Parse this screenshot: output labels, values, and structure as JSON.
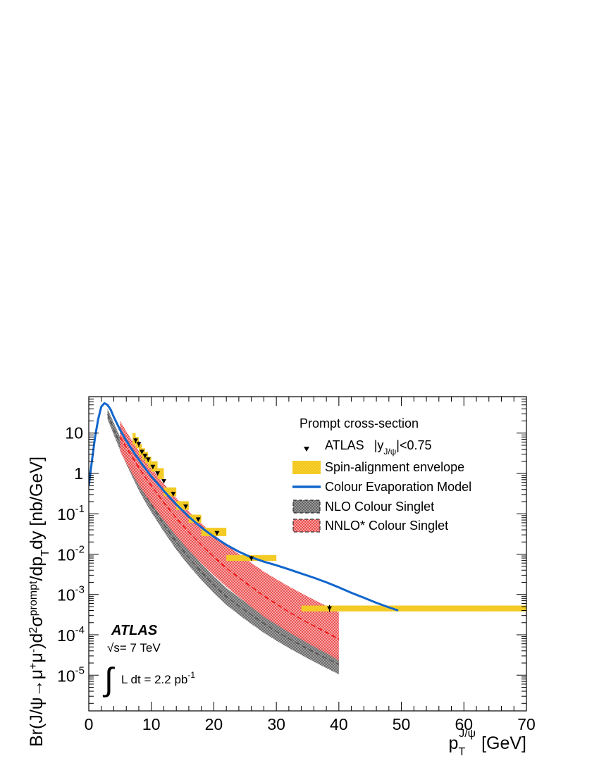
{
  "chart_data": {
    "type": "line",
    "ylabel": {
      "pre": "Br(J/ψ→μ",
      "plus": "+",
      "mid": "μ",
      "minus": "-",
      "post1": ")d",
      "two": "2",
      "sigma": "σ",
      "prompt": "prompt",
      "slash": "/dp",
      "T": "T",
      "post2": "dy [nb/GeV]"
    },
    "xlabel": {
      "p": "p",
      "sub": "T",
      "sup": "J/ψ",
      "unit": "[GeV]"
    },
    "x_range": [
      0,
      70
    ],
    "y_range": [
      1.3e-06,
      80
    ],
    "y_scale": "log",
    "x_ticks": [
      "0",
      "10",
      "20",
      "30",
      "40",
      "50",
      "60",
      "70"
    ],
    "y_ticks": [
      {
        "value": 10,
        "label": "10"
      },
      {
        "value": 1,
        "label": "1"
      },
      {
        "value": 0.1,
        "mant": "10",
        "exp": "-1"
      },
      {
        "value": 0.01,
        "mant": "10",
        "exp": "-2"
      },
      {
        "value": 0.001,
        "mant": "10",
        "exp": "-3"
      },
      {
        "value": 0.0001,
        "mant": "10",
        "exp": "-4"
      },
      {
        "value": 1e-05,
        "mant": "10",
        "exp": "-5"
      }
    ],
    "legend": {
      "title": "Prompt cross-section",
      "atlas_name": "ATLAS",
      "atlas_cut_pre": "|y",
      "atlas_cut_sub": "J/ψ",
      "atlas_cut_post": "|<0.75",
      "spin": "Spin-alignment envelope",
      "cem": "Colour Evaporation Model",
      "nlo": "NLO Colour Singlet",
      "nnlo": "NNLO* Colour Singlet"
    },
    "annotation": {
      "experiment": "ATLAS",
      "sqrt": "√",
      "energy": "s= 7 TeV",
      "integral": "∫",
      "lumi": "L dt = 2.2 pb",
      "lumi_exp": "-1"
    },
    "colors": {
      "cem": "#1166cc",
      "spin": "#f5c518",
      "nlo": "#444444",
      "nnlo": "#ee1111"
    },
    "series": [
      {
        "name": "ATLAS |y_J/ψ|<0.75",
        "kind": "points",
        "points": [
          {
            "x": 7.5,
            "y": 6.5,
            "ylo": 5.6,
            "yhi": 7.5
          },
          {
            "x": 8.0,
            "y": 5.3,
            "ylo": 4.5,
            "yhi": 6.2
          },
          {
            "x": 8.5,
            "y": 3.4,
            "ylo": 3.0,
            "yhi": 3.9
          },
          {
            "x": 9.0,
            "y": 2.7,
            "ylo": 2.35,
            "yhi": 3.1
          },
          {
            "x": 9.5,
            "y": 2.2,
            "ylo": 1.9,
            "yhi": 2.5
          },
          {
            "x": 10.25,
            "y": 1.45,
            "ylo": 1.28,
            "yhi": 1.63
          },
          {
            "x": 11.0,
            "y": 1.0,
            "ylo": 0.89,
            "yhi": 1.12
          },
          {
            "x": 12.0,
            "y": 0.64,
            "ylo": 0.57,
            "yhi": 0.72
          },
          {
            "x": 13.5,
            "y": 0.31,
            "ylo": 0.275,
            "yhi": 0.35
          },
          {
            "x": 15.5,
            "y": 0.15,
            "ylo": 0.133,
            "yhi": 0.17
          },
          {
            "x": 17.5,
            "y": 0.072,
            "ylo": 0.064,
            "yhi": 0.081
          },
          {
            "x": 20.5,
            "y": 0.033,
            "ylo": 0.029,
            "yhi": 0.037
          },
          {
            "x": 26.0,
            "y": 0.0078,
            "ylo": 0.0068,
            "yhi": 0.009
          },
          {
            "x": 38.5,
            "y": 0.00045,
            "ylo": 0.00037,
            "yhi": 0.00055
          }
        ]
      },
      {
        "name": "Spin-alignment envelope",
        "kind": "bins",
        "bins": [
          {
            "xlo": 7.0,
            "xhi": 7.5,
            "ylo": 5.2,
            "yhi": 10.0
          },
          {
            "xlo": 7.5,
            "xhi": 8.0,
            "ylo": 4.2,
            "yhi": 8.0
          },
          {
            "xlo": 8.0,
            "xhi": 8.5,
            "ylo": 2.8,
            "yhi": 5.3
          },
          {
            "xlo": 8.5,
            "xhi": 9.0,
            "ylo": 2.2,
            "yhi": 4.2
          },
          {
            "xlo": 9.0,
            "xhi": 9.5,
            "ylo": 1.8,
            "yhi": 3.4
          },
          {
            "xlo": 9.5,
            "xhi": 10.0,
            "ylo": 1.4,
            "yhi": 2.6
          },
          {
            "xlo": 10.0,
            "xhi": 11.0,
            "ylo": 1.1,
            "yhi": 2.0
          },
          {
            "xlo": 11.0,
            "xhi": 12.0,
            "ylo": 0.72,
            "yhi": 1.35
          },
          {
            "xlo": 12.0,
            "xhi": 14.0,
            "ylo": 0.27,
            "yhi": 0.45
          },
          {
            "xlo": 14.0,
            "xhi": 16.0,
            "ylo": 0.125,
            "yhi": 0.205
          },
          {
            "xlo": 16.0,
            "xhi": 18.0,
            "ylo": 0.06,
            "yhi": 0.095
          },
          {
            "xlo": 18.0,
            "xhi": 22.0,
            "ylo": 0.028,
            "yhi": 0.045
          },
          {
            "xlo": 22.0,
            "xhi": 30.0,
            "ylo": 0.0068,
            "yhi": 0.0095
          },
          {
            "xlo": 34.0,
            "xhi": 70.0,
            "ylo": 0.00038,
            "yhi": 0.00053
          }
        ]
      },
      {
        "name": "Colour Evaporation Model",
        "kind": "line",
        "x": [
          0.0,
          0.5,
          1.0,
          1.5,
          2.0,
          2.5,
          3.0,
          3.5,
          4.0,
          5.0,
          6.0,
          7.0,
          8.0,
          9.0,
          10.0,
          11.0,
          12.0,
          13.0,
          14.0,
          15.0,
          16.0,
          17.0,
          18.0,
          19.0,
          20.0,
          22.0,
          24.0,
          26.0,
          28.0,
          30.0,
          32.0,
          34.0,
          36.0,
          38.0,
          40.0,
          42.0,
          44.0,
          46.0,
          48.0,
          49.5
        ],
        "y": [
          0.5,
          2.0,
          8.0,
          22.0,
          45.0,
          55.0,
          50.0,
          38.0,
          25.0,
          12.0,
          6.5,
          3.7,
          2.2,
          1.35,
          0.85,
          0.56,
          0.37,
          0.25,
          0.17,
          0.12,
          0.085,
          0.062,
          0.046,
          0.035,
          0.027,
          0.017,
          0.0115,
          0.0083,
          0.0065,
          0.0053,
          0.0042,
          0.0033,
          0.0026,
          0.002,
          0.0015,
          0.0011,
          0.00083,
          0.00062,
          0.00048,
          0.0004
        ]
      },
      {
        "name": "NLO Colour Singlet",
        "kind": "band",
        "x": [
          3.0,
          4.0,
          5.0,
          6.0,
          7.0,
          8.0,
          9.0,
          10.0,
          12.0,
          14.0,
          16.0,
          18.0,
          20.0,
          22.0,
          25.0,
          28.0,
          30.0,
          32.0,
          35.0,
          38.0,
          40.0
        ],
        "ylo": [
          22.0,
          9.0,
          3.8,
          1.7,
          0.8,
          0.38,
          0.2,
          0.11,
          0.036,
          0.0128,
          0.0052,
          0.0023,
          0.00108,
          0.00055,
          0.00024,
          0.000112,
          7.2e-05,
          4.7e-05,
          2.6e-05,
          1.5e-05,
          1.05e-05
        ],
        "yhi": [
          40.0,
          18.0,
          8.0,
          3.6,
          1.75,
          0.88,
          0.47,
          0.26,
          0.085,
          0.031,
          0.013,
          0.0058,
          0.0028,
          0.00145,
          0.00065,
          0.00031,
          0.000205,
          0.000135,
          7.6e-05,
          4.3e-05,
          3.1e-05
        ],
        "ymid": [
          30.0,
          12.5,
          5.5,
          2.5,
          1.2,
          0.58,
          0.3,
          0.17,
          0.055,
          0.02,
          0.0082,
          0.0036,
          0.0017,
          0.00088,
          0.0004,
          0.00019,
          0.000122,
          8e-05,
          4.5e-05,
          2.6e-05,
          1.85e-05
        ]
      },
      {
        "name": "NNLO* Colour Singlet",
        "kind": "band",
        "x": [
          5.0,
          6.0,
          7.0,
          8.0,
          9.0,
          10.0,
          12.0,
          14.0,
          16.0,
          18.0,
          20.0,
          22.0,
          25.0,
          28.0,
          30.0,
          32.0,
          35.0,
          38.0,
          40.0
        ],
        "ylo": [
          3.5,
          1.8,
          0.95,
          0.52,
          0.3,
          0.18,
          0.068,
          0.028,
          0.0125,
          0.006,
          0.003,
          0.00155,
          0.00065,
          0.00028,
          0.00018,
          0.000115,
          6.2e-05,
          3.5e-05,
          2.3e-05
        ],
        "yhi": [
          20.0,
          11.0,
          6.3,
          3.6,
          2.2,
          1.35,
          0.55,
          0.245,
          0.115,
          0.058,
          0.031,
          0.017,
          0.0078,
          0.0037,
          0.0024,
          0.00158,
          0.00089,
          0.00052,
          0.00036
        ],
        "ymid": [
          8.0,
          4.4,
          2.5,
          1.4,
          0.82,
          0.5,
          0.19,
          0.078,
          0.035,
          0.0168,
          0.0085,
          0.0045,
          0.002,
          0.00092,
          0.00058,
          0.00037,
          0.0002,
          0.000115,
          7.8e-05
        ]
      }
    ]
  }
}
